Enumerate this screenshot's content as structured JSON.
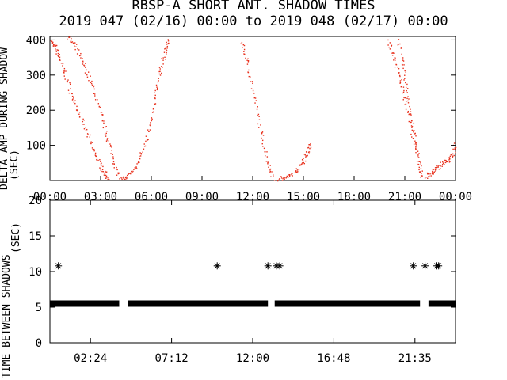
{
  "title_line1": "RBSP-A SHORT ANT. SHADOW TIMES",
  "title_line2": "2019 047 (02/16) 00:00 to 2019 048 (02/17) 00:00",
  "colors": {
    "scatter": "#e8301c",
    "axes": "#000000",
    "background": "#ffffff"
  },
  "chart_data": [
    {
      "type": "scatter",
      "ylabel": "DELTA AMP DURING SHADOW",
      "y_unit": "(SEC)",
      "xlim": [
        "00:00",
        "24:00"
      ],
      "ylim": [
        0,
        410
      ],
      "x_ticks": [
        "00:00",
        "03:00",
        "06:00",
        "09:00",
        "12:00",
        "15:00",
        "18:00",
        "21:00",
        "00:00"
      ],
      "y_ticks": [
        100,
        200,
        300,
        400
      ],
      "grid": false,
      "series": [
        {
          "color": "#e8301c",
          "segments": [
            {
              "x": [
                0.0,
                0.3,
                0.55,
                0.9,
                1.3,
                1.8,
                2.3,
                2.8,
                3.2,
                3.45
              ],
              "y": [
                400,
                380,
                350,
                300,
                240,
                180,
                120,
                60,
                25,
                5
              ]
            },
            {
              "x": [
                1.0,
                1.5,
                2.0,
                2.5,
                3.0,
                3.4,
                3.8,
                4.1
              ],
              "y": [
                410,
                380,
                330,
                270,
                190,
                120,
                50,
                10
              ]
            },
            {
              "x": [
                4.1,
                4.6,
                5.1,
                5.5,
                5.9,
                6.2,
                6.5,
                6.8,
                7.0
              ],
              "y": [
                0,
                15,
                40,
                90,
                160,
                240,
                310,
                370,
                400
              ]
            },
            {
              "x": [
                11.3,
                11.7,
                12.1,
                12.5,
                12.9,
                13.2
              ],
              "y": [
                400,
                330,
                230,
                130,
                50,
                5
              ]
            },
            {
              "x": [
                13.5,
                14.0,
                14.5,
                14.9,
                15.2,
                15.4
              ],
              "y": [
                5,
                10,
                25,
                50,
                80,
                110
              ]
            },
            {
              "x": [
                20.0,
                20.4,
                20.8,
                21.2,
                21.6,
                22.0
              ],
              "y": [
                400,
                340,
                270,
                190,
                90,
                10
              ]
            },
            {
              "x": [
                20.6,
                20.9,
                21.2,
                21.5,
                21.8,
                22.0
              ],
              "y": [
                400,
                320,
                230,
                140,
                60,
                15
              ]
            },
            {
              "x": [
                22.2,
                22.6,
                23.0,
                23.4,
                23.8,
                24.0
              ],
              "y": [
                10,
                25,
                40,
                55,
                70,
                110
              ]
            }
          ]
        }
      ]
    },
    {
      "type": "scatter",
      "ylabel": "TIME BETWEEN SHADOWS",
      "y_unit": "(SEC)",
      "xlim": [
        0,
        24
      ],
      "ylim": [
        0,
        20
      ],
      "x_ticks": [
        "02:24",
        "07:12",
        "12:00",
        "16:48",
        "21:35"
      ],
      "y_ticks": [
        0,
        5,
        10,
        15,
        20
      ],
      "grid": false,
      "series": [
        {
          "color": "#000000",
          "marker": "asterisk",
          "band": {
            "y": 5.5,
            "ranges": [
              [
                0.0,
                4.1
              ],
              [
                4.6,
                12.9
              ],
              [
                13.3,
                21.9
              ],
              [
                22.4,
                24.0
              ]
            ]
          },
          "points": [
            {
              "x": 0.5,
              "y": 10.8
            },
            {
              "x": 9.9,
              "y": 10.8
            },
            {
              "x": 12.9,
              "y": 10.8
            },
            {
              "x": 13.4,
              "y": 10.8
            },
            {
              "x": 13.6,
              "y": 10.8
            },
            {
              "x": 21.5,
              "y": 10.8
            },
            {
              "x": 22.2,
              "y": 10.8
            },
            {
              "x": 22.9,
              "y": 10.8
            },
            {
              "x": 23.0,
              "y": 10.8
            }
          ]
        }
      ]
    }
  ]
}
